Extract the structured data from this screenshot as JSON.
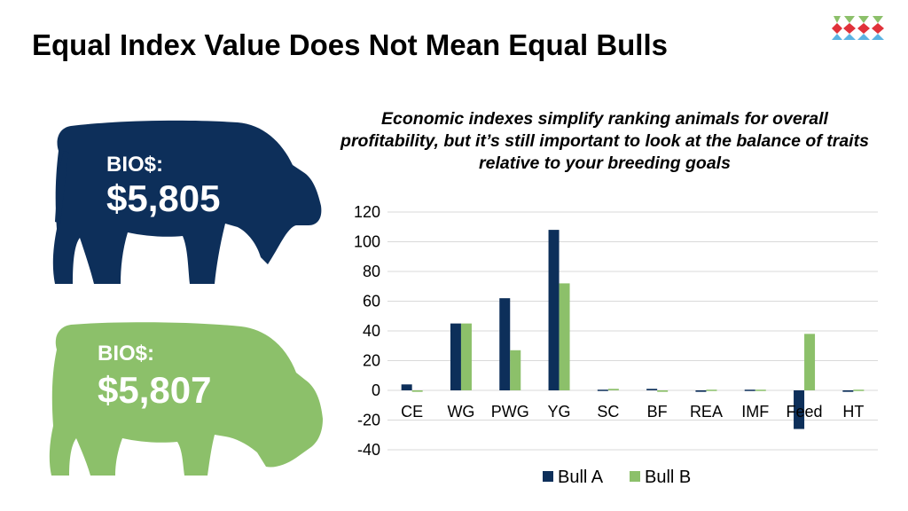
{
  "slide": {
    "title": "Equal Index Value Does Not Mean Equal Bulls",
    "subtitle": "Economic indexes simplify ranking animals for overall profitability, but it’s still important to look at the balance of traits relative to your breeding goals"
  },
  "cows": [
    {
      "label": "BIO$:",
      "value": "$5,805",
      "color": "#0d2f5a"
    },
    {
      "label": "BIO$:",
      "value": "$5,807",
      "color": "#8cc06a"
    }
  ],
  "colors": {
    "bull_a": "#0d2f5a",
    "bull_b": "#8cc06a",
    "grid": "#d9d9d9"
  },
  "chart_data": {
    "type": "bar",
    "categories": [
      "CE",
      "WG",
      "PWG",
      "YG",
      "SC",
      "BF",
      "REA",
      "IMF",
      "Feed",
      "HT"
    ],
    "series": [
      {
        "name": "Bull A",
        "values": [
          4,
          45,
          62,
          108,
          0,
          1,
          -1,
          0,
          -26,
          -1
        ]
      },
      {
        "name": "Bull B",
        "values": [
          -1,
          45,
          27,
          72,
          1,
          -1,
          0,
          0,
          38,
          0
        ]
      }
    ],
    "ylim": [
      -40,
      120
    ],
    "yticks": [
      120,
      100,
      80,
      60,
      40,
      20,
      0,
      -20,
      -40
    ],
    "grid": true,
    "legend": "bottom"
  }
}
